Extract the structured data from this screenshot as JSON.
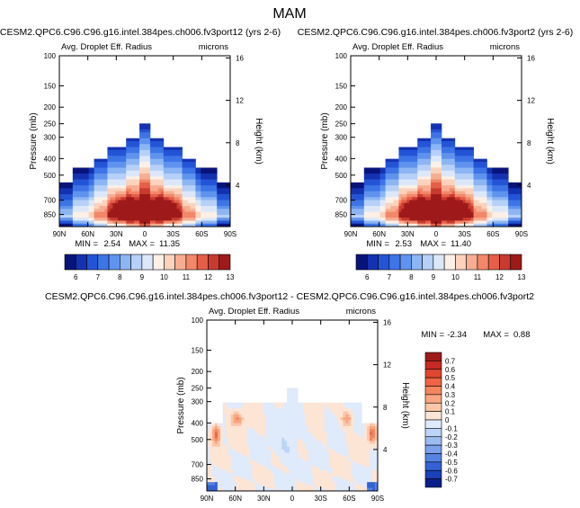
{
  "page": {
    "title": "MAM"
  },
  "chart_data": [
    {
      "type": "heatmap",
      "title": "CESM2.QPC6.C96.C96.g16.intel.384pes.ch006.fv3port12 (yrs 2-6)",
      "subtitle": "Avg. Droplet Eff. Radius",
      "units": "microns",
      "xlabel": "",
      "ylabel": "Pressure (mb)",
      "y2label": "Height (km)",
      "x_ticks": [
        "90N",
        "60N",
        "30N",
        "0",
        "30S",
        "60S",
        "90S"
      ],
      "y_ticks": [
        "100",
        "150",
        "200",
        "250",
        "300",
        "400",
        "500",
        "700",
        "850"
      ],
      "y2_ticks": [
        "16",
        "12",
        "8",
        "4"
      ],
      "xlim": [
        90,
        -90
      ],
      "ylim": [
        1000,
        100
      ],
      "y_scale": "log",
      "min_label": "MIN =",
      "min_value": "2.54",
      "max_label": "MAX =",
      "max_value": "11.35",
      "colorbar": {
        "orientation": "horizontal",
        "labels": [
          "6",
          "7",
          "8",
          "9",
          "10",
          "11",
          "12",
          "13"
        ],
        "colors": [
          "#08147a",
          "#1432b0",
          "#2454d6",
          "#3d74e6",
          "#5f93ee",
          "#8cb5f3",
          "#b6d0f7",
          "#dce8fa",
          "#fdf0e6",
          "#fbd2bc",
          "#f7ad92",
          "#f28769",
          "#e55f48",
          "#c93a2f",
          "#9e1a1a"
        ]
      }
    },
    {
      "type": "heatmap",
      "title": "CESM2.QPC6.C96.C96.g16.intel.384pes.ch006.fv3port2 (yrs 2-6)",
      "subtitle": "Avg. Droplet Eff. Radius",
      "units": "microns",
      "xlabel": "",
      "ylabel": "Pressure (mb)",
      "y2label": "Height (km)",
      "x_ticks": [
        "90N",
        "60N",
        "30N",
        "0",
        "30S",
        "60S",
        "90S"
      ],
      "y_ticks": [
        "100",
        "150",
        "200",
        "250",
        "300",
        "400",
        "500",
        "700",
        "850"
      ],
      "y2_ticks": [
        "16",
        "12",
        "8",
        "4"
      ],
      "xlim": [
        90,
        -90
      ],
      "ylim": [
        1000,
        100
      ],
      "y_scale": "log",
      "min_label": "MIN =",
      "min_value": "2.53",
      "max_label": "MAX =",
      "max_value": "11.40",
      "colorbar": {
        "orientation": "horizontal",
        "labels": [
          "6",
          "7",
          "8",
          "9",
          "10",
          "11",
          "12",
          "13"
        ],
        "colors": [
          "#08147a",
          "#1432b0",
          "#2454d6",
          "#3d74e6",
          "#5f93ee",
          "#8cb5f3",
          "#b6d0f7",
          "#dce8fa",
          "#fdf0e6",
          "#fbd2bc",
          "#f7ad92",
          "#f28769",
          "#e55f48",
          "#c93a2f",
          "#9e1a1a"
        ]
      }
    },
    {
      "type": "heatmap",
      "title": "CESM2.QPC6.C96.C96.g16.intel.384pes.ch006.fv3port12 - CESM2.QPC6.C96.C96.g16.intel.384pes.ch006.fv3port2",
      "subtitle": "Avg. Droplet Eff. Radius",
      "units": "microns",
      "xlabel": "",
      "ylabel": "Pressure (mb)",
      "y2label": "Height (km)",
      "x_ticks": [
        "90N",
        "60N",
        "30N",
        "0",
        "30S",
        "60S",
        "90S"
      ],
      "y_ticks": [
        "100",
        "150",
        "200",
        "250",
        "300",
        "400",
        "500",
        "700",
        "850"
      ],
      "y2_ticks": [
        "16",
        "12",
        "8",
        "4"
      ],
      "xlim": [
        90,
        -90
      ],
      "ylim": [
        1000,
        100
      ],
      "y_scale": "log",
      "min_label": "MIN =",
      "min_value": "-2.34",
      "max_label": "MAX =",
      "max_value": "0.88",
      "colorbar": {
        "orientation": "vertical",
        "labels": [
          "0.7",
          "0.6",
          "0.5",
          "0.4",
          "0.3",
          "0.2",
          "0.1",
          "0",
          "-0.1",
          "-0.2",
          "-0.3",
          "-0.4",
          "-0.5",
          "-0.6",
          "-0.7"
        ],
        "colors": [
          "#9e1a1a",
          "#c62a22",
          "#e0452f",
          "#ee6444",
          "#f5855f",
          "#f9a681",
          "#fbc6a9",
          "#fde5d5",
          "#dfeafb",
          "#bed4f6",
          "#9cbcf0",
          "#7aa1ea",
          "#5683e2",
          "#3462d4",
          "#1c40b8",
          "#0b1f8a"
        ]
      }
    }
  ]
}
